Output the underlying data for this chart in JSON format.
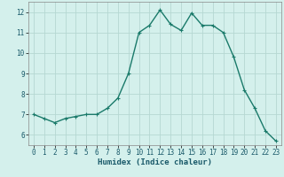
{
  "x": [
    0,
    1,
    2,
    3,
    4,
    5,
    6,
    7,
    8,
    9,
    10,
    11,
    12,
    13,
    14,
    15,
    16,
    17,
    18,
    19,
    20,
    21,
    22,
    23
  ],
  "y": [
    7.0,
    6.8,
    6.6,
    6.8,
    6.9,
    7.0,
    7.0,
    7.3,
    7.8,
    9.0,
    11.0,
    11.35,
    12.1,
    11.4,
    11.1,
    11.95,
    11.35,
    11.35,
    11.0,
    9.8,
    8.2,
    7.3,
    6.2,
    5.7
  ],
  "line_color": "#1a7a6a",
  "marker": "+",
  "marker_size": 3,
  "bg_color": "#d4f0ec",
  "grid_color": "#b5d8d2",
  "xlabel": "Humidex (Indice chaleur)",
  "xlim": [
    -0.5,
    23.5
  ],
  "ylim": [
    5.5,
    12.5
  ],
  "yticks": [
    6,
    7,
    8,
    9,
    10,
    11,
    12
  ],
  "xticks": [
    0,
    1,
    2,
    3,
    4,
    5,
    6,
    7,
    8,
    9,
    10,
    11,
    12,
    13,
    14,
    15,
    16,
    17,
    18,
    19,
    20,
    21,
    22,
    23
  ],
  "tick_fontsize": 5.5,
  "xlabel_fontsize": 6.5,
  "line_width": 1.0,
  "marker_edge_width": 0.8
}
